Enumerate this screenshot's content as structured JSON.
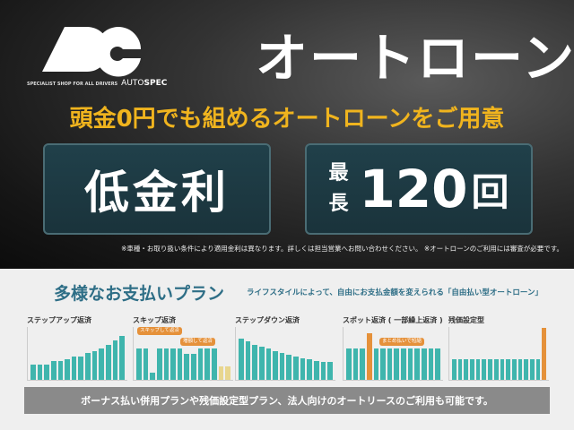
{
  "brand": {
    "logo_text": "DC",
    "tagline": "SPECIALIST SHOP FOR ALL DRIVERS",
    "name_thin": "AUTO",
    "name_bold": "SPEC"
  },
  "title": "オートローン",
  "lead": "頭金0円でも組めるオートローンをご用意",
  "box1": "低金利",
  "box2": {
    "pre1": "最",
    "pre2": "長",
    "num": "120",
    "unit": "回"
  },
  "note": "※車種・お取り扱い条件により適用金利は異なります。詳しくは担当営業へお問い合わせください。 ※オートローンのご利用には審査が必要です。",
  "plans": {
    "title": "多様なお支払いプラン",
    "subtitle": "ライフスタイルによって、自由にお支払金額を変えられる「自由払い型オートローン」",
    "items": [
      {
        "label": "ステップアップ返済",
        "bars": [
          30,
          30,
          30,
          36,
          36,
          40,
          44,
          44,
          52,
          56,
          60,
          68,
          76,
          84
        ]
      },
      {
        "label": "スキップ返済",
        "bars": [
          60,
          60,
          14,
          60,
          60,
          60,
          60,
          50,
          50,
          60,
          60,
          60,
          26,
          26
        ],
        "tags": [
          "スキップして返済",
          "増額して返済"
        ]
      },
      {
        "label": "ステップダウン返済",
        "bars": [
          80,
          74,
          68,
          64,
          60,
          56,
          52,
          48,
          44,
          42,
          40,
          36,
          34,
          34
        ]
      },
      {
        "label": "スポット返済 ( 一部繰上返済 )",
        "bars": [
          60,
          60,
          60,
          90,
          60,
          60,
          60,
          60,
          60,
          60,
          60,
          60,
          60,
          60
        ],
        "tags": [
          "まとめ払いで短縮"
        ]
      },
      {
        "label": "残価設定型",
        "bars": [
          40,
          40,
          40,
          40,
          40,
          40,
          40,
          40,
          40,
          40,
          40,
          40,
          40,
          40,
          40,
          100
        ]
      }
    ]
  },
  "footer": "ボーナス払い併用プランや残価設定型プラン、法人向けのオートリースのご利用も可能です。",
  "colors": {
    "accent_yellow": "#f0b41e",
    "teal": "#3fb5ad",
    "orange": "#e5913a",
    "heading": "#2e6e86"
  }
}
